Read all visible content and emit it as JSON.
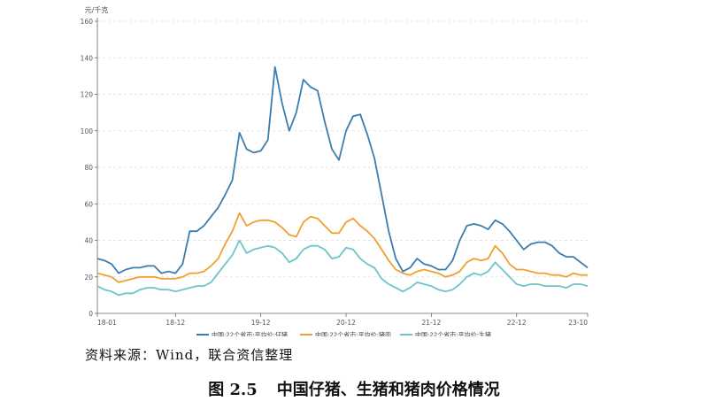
{
  "chart_data": {
    "type": "line",
    "ylabel": "元/千克",
    "ylim": [
      0,
      160
    ],
    "yticks": [
      0,
      20,
      40,
      60,
      80,
      100,
      120,
      140,
      160
    ],
    "x_range": [
      0,
      69
    ],
    "x_ticks": [
      {
        "x": 0,
        "label": "18-01"
      },
      {
        "x": 11,
        "label": "18-12"
      },
      {
        "x": 23,
        "label": "19-12"
      },
      {
        "x": 35,
        "label": "20-12"
      },
      {
        "x": 47,
        "label": "21-12"
      },
      {
        "x": 59,
        "label": "22-12"
      },
      {
        "x": 69,
        "label": "23-10"
      }
    ],
    "grid": true,
    "legend_position": "bottom",
    "series": [
      {
        "name": "中国:22个省市:平均价:仔猪",
        "color": "#3a7eb0",
        "points": [
          [
            0,
            30
          ],
          [
            1,
            29
          ],
          [
            2,
            27
          ],
          [
            3,
            22
          ],
          [
            4,
            24
          ],
          [
            5,
            25
          ],
          [
            6,
            25
          ],
          [
            7,
            26
          ],
          [
            8,
            26
          ],
          [
            9,
            22
          ],
          [
            10,
            23
          ],
          [
            11,
            22
          ],
          [
            12,
            27
          ],
          [
            13,
            45
          ],
          [
            14,
            45
          ],
          [
            15,
            48
          ],
          [
            16,
            53
          ],
          [
            17,
            58
          ],
          [
            18,
            65
          ],
          [
            19,
            73
          ],
          [
            20,
            99
          ],
          [
            21,
            90
          ],
          [
            22,
            88
          ],
          [
            23,
            89
          ],
          [
            24,
            95
          ],
          [
            25,
            135
          ],
          [
            26,
            115
          ],
          [
            27,
            100
          ],
          [
            28,
            110
          ],
          [
            29,
            128
          ],
          [
            30,
            124
          ],
          [
            31,
            122
          ],
          [
            32,
            105
          ],
          [
            33,
            90
          ],
          [
            34,
            84
          ],
          [
            35,
            100
          ],
          [
            36,
            108
          ],
          [
            37,
            109
          ],
          [
            38,
            98
          ],
          [
            39,
            85
          ],
          [
            40,
            65
          ],
          [
            41,
            45
          ],
          [
            42,
            30
          ],
          [
            43,
            23
          ],
          [
            44,
            25
          ],
          [
            45,
            30
          ],
          [
            46,
            27
          ],
          [
            47,
            26
          ],
          [
            48,
            24
          ],
          [
            49,
            24
          ],
          [
            50,
            29
          ],
          [
            51,
            40
          ],
          [
            52,
            48
          ],
          [
            53,
            49
          ],
          [
            54,
            48
          ],
          [
            55,
            46
          ],
          [
            56,
            51
          ],
          [
            57,
            49
          ],
          [
            58,
            45
          ],
          [
            59,
            40
          ],
          [
            60,
            35
          ],
          [
            61,
            38
          ],
          [
            62,
            39
          ],
          [
            63,
            39
          ],
          [
            64,
            37
          ],
          [
            65,
            33
          ],
          [
            66,
            31
          ],
          [
            67,
            31
          ],
          [
            68,
            28
          ],
          [
            69,
            25
          ]
        ]
      },
      {
        "name": "中国:22个省市:平均价:猪肉",
        "color": "#f0a030",
        "points": [
          [
            0,
            22
          ],
          [
            1,
            21
          ],
          [
            2,
            20
          ],
          [
            3,
            17
          ],
          [
            4,
            18
          ],
          [
            5,
            19
          ],
          [
            6,
            20
          ],
          [
            7,
            20
          ],
          [
            8,
            20
          ],
          [
            9,
            19
          ],
          [
            10,
            19
          ],
          [
            11,
            19
          ],
          [
            12,
            20
          ],
          [
            13,
            22
          ],
          [
            14,
            22
          ],
          [
            15,
            23
          ],
          [
            16,
            26
          ],
          [
            17,
            30
          ],
          [
            18,
            38
          ],
          [
            19,
            45
          ],
          [
            20,
            55
          ],
          [
            21,
            48
          ],
          [
            22,
            50
          ],
          [
            23,
            51
          ],
          [
            24,
            51
          ],
          [
            25,
            50
          ],
          [
            26,
            47
          ],
          [
            27,
            43
          ],
          [
            28,
            42
          ],
          [
            29,
            50
          ],
          [
            30,
            53
          ],
          [
            31,
            52
          ],
          [
            32,
            48
          ],
          [
            33,
            44
          ],
          [
            34,
            44
          ],
          [
            35,
            50
          ],
          [
            36,
            52
          ],
          [
            37,
            48
          ],
          [
            38,
            45
          ],
          [
            39,
            41
          ],
          [
            40,
            35
          ],
          [
            41,
            29
          ],
          [
            42,
            24
          ],
          [
            43,
            22
          ],
          [
            44,
            21
          ],
          [
            45,
            23
          ],
          [
            46,
            24
          ],
          [
            47,
            23
          ],
          [
            48,
            22
          ],
          [
            49,
            20
          ],
          [
            50,
            21
          ],
          [
            51,
            23
          ],
          [
            52,
            28
          ],
          [
            53,
            30
          ],
          [
            54,
            29
          ],
          [
            55,
            30
          ],
          [
            56,
            37
          ],
          [
            57,
            33
          ],
          [
            58,
            27
          ],
          [
            59,
            24
          ],
          [
            60,
            24
          ],
          [
            61,
            23
          ],
          [
            62,
            22
          ],
          [
            63,
            22
          ],
          [
            64,
            21
          ],
          [
            65,
            21
          ],
          [
            66,
            20
          ],
          [
            67,
            22
          ],
          [
            68,
            21
          ],
          [
            69,
            21
          ]
        ]
      },
      {
        "name": "中国:22个省市:平均价:生猪",
        "color": "#6cc5cb",
        "points": [
          [
            0,
            15
          ],
          [
            1,
            13
          ],
          [
            2,
            12
          ],
          [
            3,
            10
          ],
          [
            4,
            11
          ],
          [
            5,
            11
          ],
          [
            6,
            13
          ],
          [
            7,
            14
          ],
          [
            8,
            14
          ],
          [
            9,
            13
          ],
          [
            10,
            13
          ],
          [
            11,
            12
          ],
          [
            12,
            13
          ],
          [
            13,
            14
          ],
          [
            14,
            15
          ],
          [
            15,
            15
          ],
          [
            16,
            17
          ],
          [
            17,
            22
          ],
          [
            18,
            27
          ],
          [
            19,
            32
          ],
          [
            20,
            40
          ],
          [
            21,
            33
          ],
          [
            22,
            35
          ],
          [
            23,
            36
          ],
          [
            24,
            37
          ],
          [
            25,
            36
          ],
          [
            26,
            33
          ],
          [
            27,
            28
          ],
          [
            28,
            30
          ],
          [
            29,
            35
          ],
          [
            30,
            37
          ],
          [
            31,
            37
          ],
          [
            32,
            35
          ],
          [
            33,
            30
          ],
          [
            34,
            31
          ],
          [
            35,
            36
          ],
          [
            36,
            35
          ],
          [
            37,
            30
          ],
          [
            38,
            27
          ],
          [
            39,
            25
          ],
          [
            40,
            19
          ],
          [
            41,
            16
          ],
          [
            42,
            14
          ],
          [
            43,
            12
          ],
          [
            44,
            14
          ],
          [
            45,
            17
          ],
          [
            46,
            16
          ],
          [
            47,
            15
          ],
          [
            48,
            13
          ],
          [
            49,
            12
          ],
          [
            50,
            13
          ],
          [
            51,
            16
          ],
          [
            52,
            20
          ],
          [
            53,
            22
          ],
          [
            54,
            21
          ],
          [
            55,
            23
          ],
          [
            56,
            28
          ],
          [
            57,
            24
          ],
          [
            58,
            20
          ],
          [
            59,
            16
          ],
          [
            60,
            15
          ],
          [
            61,
            16
          ],
          [
            62,
            16
          ],
          [
            63,
            15
          ],
          [
            64,
            15
          ],
          [
            65,
            15
          ],
          [
            66,
            14
          ],
          [
            67,
            16
          ],
          [
            68,
            16
          ],
          [
            69,
            15
          ]
        ]
      }
    ]
  },
  "source_text": "资料来源：Wind，联合资信整理",
  "caption": {
    "number": "图 2.5",
    "title": "中国仔猪、生猪和猪肉价格情况"
  }
}
